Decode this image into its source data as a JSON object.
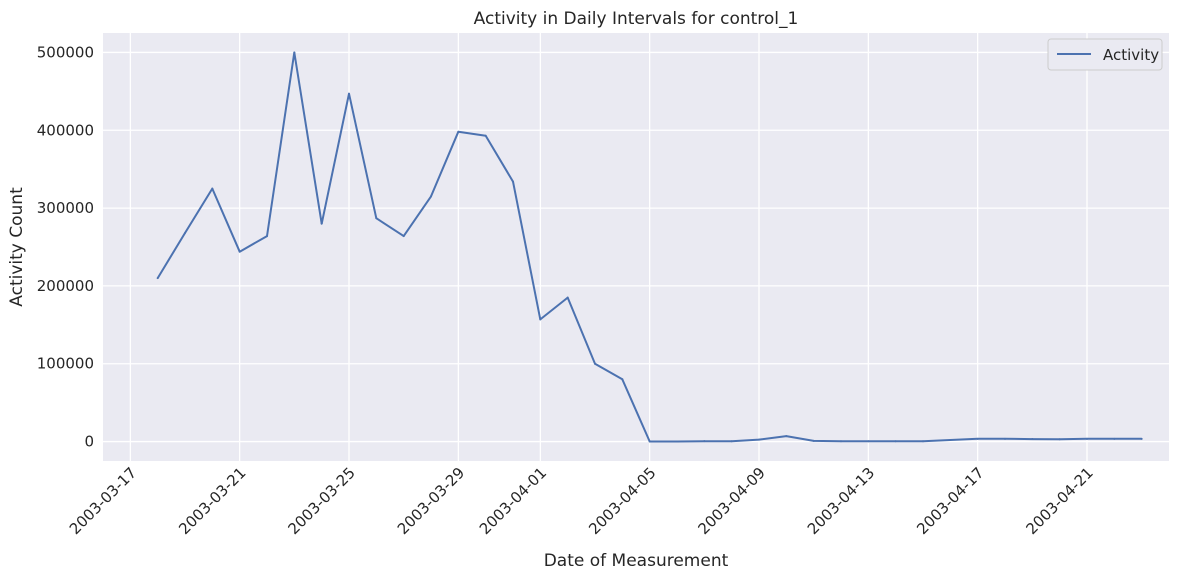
{
  "chart_data": {
    "type": "line",
    "title": "Activity in Daily Intervals for control_1",
    "xlabel": "Date of Measurement",
    "ylabel": "Activity Count",
    "grid": true,
    "legend_position": "top-right",
    "x_range": [
      "2003-03-16",
      "2003-04-24"
    ],
    "ylim": [
      -25000,
      525000
    ],
    "x_ticks": [
      "2003-03-17",
      "2003-03-21",
      "2003-03-25",
      "2003-03-29",
      "2003-04-01",
      "2003-04-05",
      "2003-04-09",
      "2003-04-13",
      "2003-04-17",
      "2003-04-21"
    ],
    "y_ticks": [
      0,
      100000,
      200000,
      300000,
      400000,
      500000
    ],
    "y_tick_labels": [
      "0",
      "100000",
      "200000",
      "300000",
      "400000",
      "500000"
    ],
    "colors": {
      "background": "#eaeaf2",
      "grid": "#ffffff",
      "line": "#4c72b0"
    },
    "series": [
      {
        "name": "Activity",
        "x": [
          "2003-03-18",
          "2003-03-19",
          "2003-03-20",
          "2003-03-21",
          "2003-03-22",
          "2003-03-23",
          "2003-03-24",
          "2003-03-25",
          "2003-03-26",
          "2003-03-27",
          "2003-03-28",
          "2003-03-29",
          "2003-03-30",
          "2003-03-31",
          "2003-04-01",
          "2003-04-02",
          "2003-04-03",
          "2003-04-04",
          "2003-04-05",
          "2003-04-06",
          "2003-04-07",
          "2003-04-08",
          "2003-04-09",
          "2003-04-10",
          "2003-04-11",
          "2003-04-12",
          "2003-04-13",
          "2003-04-14",
          "2003-04-15",
          "2003-04-16",
          "2003-04-17",
          "2003-04-18",
          "2003-04-19",
          "2003-04-20",
          "2003-04-21",
          "2003-04-22",
          "2003-04-23"
        ],
        "values": [
          210000,
          268000,
          325000,
          244000,
          264000,
          500000,
          280000,
          447000,
          287000,
          264000,
          315000,
          398000,
          393000,
          334000,
          157000,
          185000,
          100000,
          80000,
          0,
          0,
          500,
          300,
          2500,
          7000,
          800,
          300,
          300,
          300,
          300,
          2000,
          3500,
          3500,
          3200,
          3000,
          3500,
          3500,
          3500
        ]
      }
    ]
  }
}
